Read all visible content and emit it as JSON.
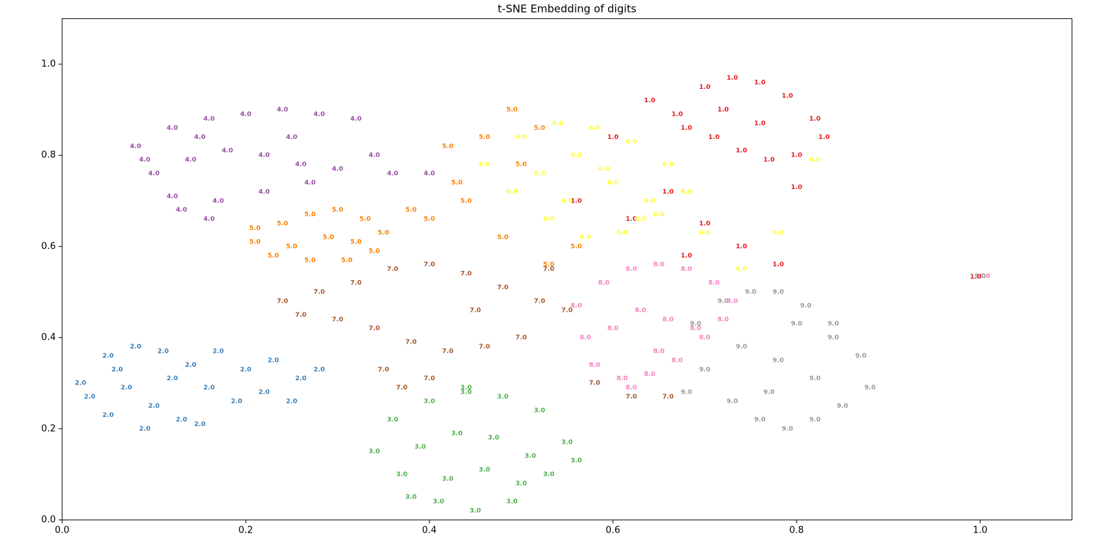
{
  "chart_data": {
    "type": "scatter",
    "title": "t-SNE Embedding of digits",
    "xlim": [
      0,
      1.1
    ],
    "ylim": [
      0,
      1.1
    ],
    "xticks": [
      {
        "value": 0,
        "label": "0.0"
      },
      0.2,
      0.4,
      0.6,
      0.8,
      {
        "value": 1,
        "label": "1.0"
      }
    ],
    "yticks": [
      {
        "value": 0,
        "label": "0.0"
      },
      0.2,
      0.4,
      0.6,
      0.8,
      {
        "value": 1,
        "label": "1.0"
      }
    ],
    "series": [
      {
        "name": "4.0",
        "color": "#984ea3",
        "x": [
          0.08,
          0.12,
          0.16,
          0.2,
          0.24,
          0.28,
          0.32,
          0.1,
          0.14,
          0.18,
          0.22,
          0.26,
          0.3,
          0.34,
          0.12,
          0.17,
          0.22,
          0.27,
          0.09,
          0.15,
          0.25,
          0.36,
          0.4,
          0.16,
          0.13
        ],
        "values": [
          0.82,
          0.86,
          0.88,
          0.89,
          0.9,
          0.89,
          0.88,
          0.76,
          0.79,
          0.81,
          0.8,
          0.78,
          0.77,
          0.8,
          0.71,
          0.7,
          0.72,
          0.74,
          0.79,
          0.84,
          0.84,
          0.76,
          0.76,
          0.66,
          0.68
        ]
      },
      {
        "name": "5.0",
        "color": "#ff7f00",
        "x": [
          0.21,
          0.24,
          0.27,
          0.3,
          0.33,
          0.35,
          0.34,
          0.31,
          0.27,
          0.23,
          0.21,
          0.25,
          0.29,
          0.32,
          0.4,
          0.43,
          0.46,
          0.49,
          0.52,
          0.44,
          0.48,
          0.53,
          0.56,
          0.5,
          0.42,
          0.38
        ],
        "values": [
          0.61,
          0.65,
          0.67,
          0.68,
          0.66,
          0.63,
          0.59,
          0.57,
          0.57,
          0.58,
          0.64,
          0.6,
          0.62,
          0.61,
          0.66,
          0.74,
          0.84,
          0.9,
          0.86,
          0.7,
          0.62,
          0.56,
          0.6,
          0.78,
          0.82,
          0.68
        ]
      },
      {
        "name": "2.0",
        "color": "#377eb8",
        "x": [
          0.02,
          0.05,
          0.08,
          0.11,
          0.14,
          0.16,
          0.13,
          0.09,
          0.05,
          0.03,
          0.07,
          0.12,
          0.17,
          0.2,
          0.23,
          0.26,
          0.19,
          0.22,
          0.25,
          0.1,
          0.06,
          0.15,
          0.28
        ],
        "values": [
          0.3,
          0.36,
          0.38,
          0.37,
          0.34,
          0.29,
          0.22,
          0.2,
          0.23,
          0.27,
          0.29,
          0.31,
          0.37,
          0.33,
          0.35,
          0.31,
          0.26,
          0.28,
          0.26,
          0.25,
          0.33,
          0.21,
          0.33
        ]
      },
      {
        "name": "3.0",
        "color": "#4daf4a",
        "x": [
          0.36,
          0.4,
          0.44,
          0.48,
          0.52,
          0.55,
          0.53,
          0.49,
          0.45,
          0.41,
          0.37,
          0.39,
          0.43,
          0.47,
          0.51,
          0.42,
          0.46,
          0.5,
          0.34,
          0.56,
          0.44,
          0.38
        ],
        "values": [
          0.22,
          0.26,
          0.28,
          0.27,
          0.24,
          0.17,
          0.1,
          0.04,
          0.02,
          0.04,
          0.1,
          0.16,
          0.19,
          0.18,
          0.14,
          0.09,
          0.11,
          0.08,
          0.15,
          0.13,
          0.29,
          0.05
        ]
      },
      {
        "name": "7.0",
        "color": "#a65628",
        "x": [
          0.24,
          0.28,
          0.32,
          0.36,
          0.4,
          0.44,
          0.48,
          0.52,
          0.55,
          0.5,
          0.46,
          0.42,
          0.38,
          0.34,
          0.3,
          0.26,
          0.35,
          0.4,
          0.45,
          0.37,
          0.58,
          0.62,
          0.66,
          0.53
        ],
        "values": [
          0.48,
          0.5,
          0.52,
          0.55,
          0.56,
          0.54,
          0.51,
          0.48,
          0.46,
          0.4,
          0.38,
          0.37,
          0.39,
          0.42,
          0.44,
          0.45,
          0.33,
          0.31,
          0.46,
          0.29,
          0.3,
          0.27,
          0.27,
          0.55
        ]
      },
      {
        "name": "8.0",
        "color": "#f781bf",
        "x": [
          0.56,
          0.59,
          0.62,
          0.65,
          0.68,
          0.71,
          0.73,
          0.7,
          0.67,
          0.64,
          0.61,
          0.58,
          0.6,
          0.63,
          0.66,
          0.69,
          0.57,
          0.62,
          0.72,
          0.65,
          1.005
        ],
        "values": [
          0.47,
          0.52,
          0.55,
          0.56,
          0.55,
          0.52,
          0.48,
          0.4,
          0.35,
          0.32,
          0.31,
          0.34,
          0.42,
          0.46,
          0.44,
          0.42,
          0.4,
          0.29,
          0.44,
          0.37,
          0.535
        ]
      },
      {
        "name": "9.0",
        "color": "#999999",
        "x": [
          0.69,
          0.72,
          0.75,
          0.78,
          0.81,
          0.84,
          0.87,
          0.88,
          0.85,
          0.82,
          0.79,
          0.76,
          0.73,
          0.7,
          0.74,
          0.78,
          0.82,
          0.77,
          0.84,
          0.8,
          0.68,
          1.0
        ],
        "values": [
          0.43,
          0.48,
          0.5,
          0.5,
          0.47,
          0.43,
          0.36,
          0.29,
          0.25,
          0.22,
          0.2,
          0.22,
          0.26,
          0.33,
          0.38,
          0.35,
          0.31,
          0.28,
          0.4,
          0.43,
          0.28,
          0.535
        ]
      },
      {
        "name": "1.0",
        "color": "#e41a1c",
        "x": [
          0.67,
          0.7,
          0.73,
          0.76,
          0.79,
          0.82,
          0.83,
          0.8,
          0.77,
          0.74,
          0.71,
          0.68,
          0.72,
          0.76,
          0.64,
          0.6,
          0.56,
          0.66,
          0.7,
          0.74,
          0.78,
          0.68,
          0.62,
          0.8,
          0.995
        ],
        "values": [
          0.89,
          0.95,
          0.97,
          0.96,
          0.93,
          0.88,
          0.84,
          0.8,
          0.79,
          0.81,
          0.84,
          0.86,
          0.9,
          0.87,
          0.92,
          0.84,
          0.7,
          0.72,
          0.65,
          0.6,
          0.56,
          0.58,
          0.66,
          0.73,
          0.533
        ]
      },
      {
        "name": "6.0",
        "color": "#ffff33",
        "x": [
          0.46,
          0.5,
          0.54,
          0.58,
          0.62,
          0.66,
          0.68,
          0.65,
          0.61,
          0.57,
          0.53,
          0.49,
          0.52,
          0.56,
          0.6,
          0.64,
          0.55,
          0.59,
          0.63,
          0.7,
          0.74,
          0.82,
          0.78
        ],
        "values": [
          0.78,
          0.84,
          0.87,
          0.86,
          0.83,
          0.78,
          0.72,
          0.67,
          0.63,
          0.62,
          0.66,
          0.72,
          0.76,
          0.8,
          0.74,
          0.7,
          0.7,
          0.77,
          0.66,
          0.63,
          0.55,
          0.79,
          0.63
        ]
      }
    ]
  }
}
